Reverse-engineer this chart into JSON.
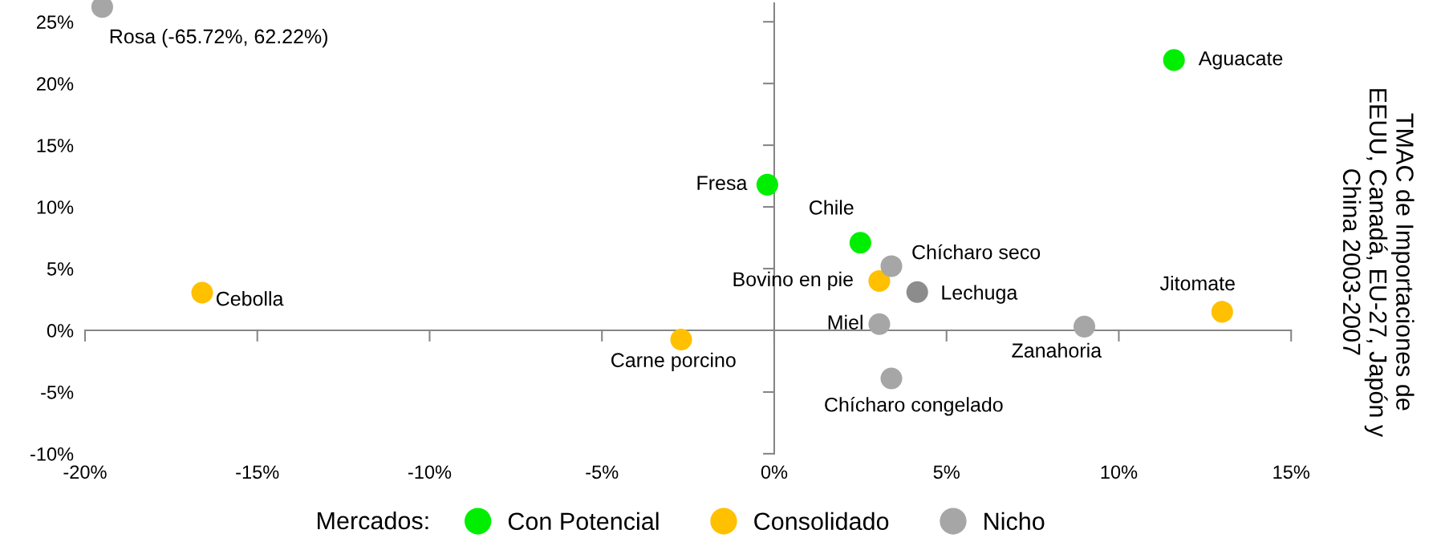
{
  "chart_data": {
    "type": "scatter",
    "ylabel": "TMAC de Importaciones de\nEEUU, Canadá, EU-27, Japón y\nChina 2003-2007",
    "legend_title": "Mercados:",
    "legend": "bottom",
    "marker": "circle",
    "xlim": [
      -20,
      15
    ],
    "ylim": [
      -10,
      26.5
    ],
    "xticks": [
      {
        "value": -20,
        "label": "-20%"
      },
      {
        "value": -15,
        "label": "-15%"
      },
      {
        "value": -10,
        "label": "-10%"
      },
      {
        "value": -5,
        "label": "-5%"
      },
      {
        "value": 0,
        "label": "0%"
      },
      {
        "value": 5,
        "label": "5%"
      },
      {
        "value": 10,
        "label": "10%"
      },
      {
        "value": 15,
        "label": "15%"
      }
    ],
    "yticks": [
      {
        "value": -10,
        "label": "-10%"
      },
      {
        "value": -5,
        "label": "-5%"
      },
      {
        "value": 0,
        "label": "0%"
      },
      {
        "value": 5,
        "label": "5%"
      },
      {
        "value": 10,
        "label": "10%"
      },
      {
        "value": 15,
        "label": "15%"
      },
      {
        "value": 20,
        "label": "20%"
      },
      {
        "value": 25,
        "label": "25%"
      }
    ],
    "series": [
      {
        "name": "Con Potencial",
        "color": "#00ee00",
        "x": [
          11.6,
          -0.2,
          2.5
        ],
        "values": [
          21.9,
          11.8,
          7.1
        ]
      },
      {
        "name": "Consolidado",
        "color": "#ffc000",
        "x": [
          3.05,
          -16.6,
          -2.7,
          13.0
        ],
        "values": [
          4.0,
          3.05,
          -0.75,
          1.5
        ]
      },
      {
        "name": "Nicho",
        "color": "#a6a6a6",
        "colors": [
          "#a6a6a6",
          "#8c8c8c",
          "#a6a6a6",
          "#a6a6a6",
          "#a6a6a6",
          "#a6a6a6"
        ],
        "x": [
          3.4,
          4.15,
          3.05,
          9.0,
          3.4,
          -19.5
        ],
        "values": [
          5.2,
          3.1,
          0.5,
          0.3,
          -3.9,
          26.2
        ]
      }
    ],
    "annotations": [
      {
        "text": "Aguacate",
        "x": 11.6,
        "y": 21.9
      },
      {
        "text": "Fresa",
        "x": -0.2,
        "y": 11.8
      },
      {
        "text": "Chile",
        "x": 2.5,
        "y": 7.1
      },
      {
        "text": "Bovino en pie",
        "x": 3.05,
        "y": 4.0
      },
      {
        "text": "Cebolla",
        "x": -16.6,
        "y": 3.05
      },
      {
        "text": "Carne porcino",
        "x": -2.7,
        "y": -0.75
      },
      {
        "text": "Jitomate",
        "x": 13.0,
        "y": 1.5
      },
      {
        "text": "Chícharo seco",
        "x": 3.4,
        "y": 5.2
      },
      {
        "text": "Lechuga",
        "x": 4.15,
        "y": 3.1
      },
      {
        "text": "Miel",
        "x": 3.05,
        "y": 0.5
      },
      {
        "text": "Zanahoria",
        "x": 9.0,
        "y": 0.3
      },
      {
        "text": "Chícharo congelado",
        "x": 3.4,
        "y": -3.9
      },
      {
        "text": "Rosa (-65.72%, 62.22%)",
        "x": -19.5,
        "y": 26.2
      }
    ]
  }
}
